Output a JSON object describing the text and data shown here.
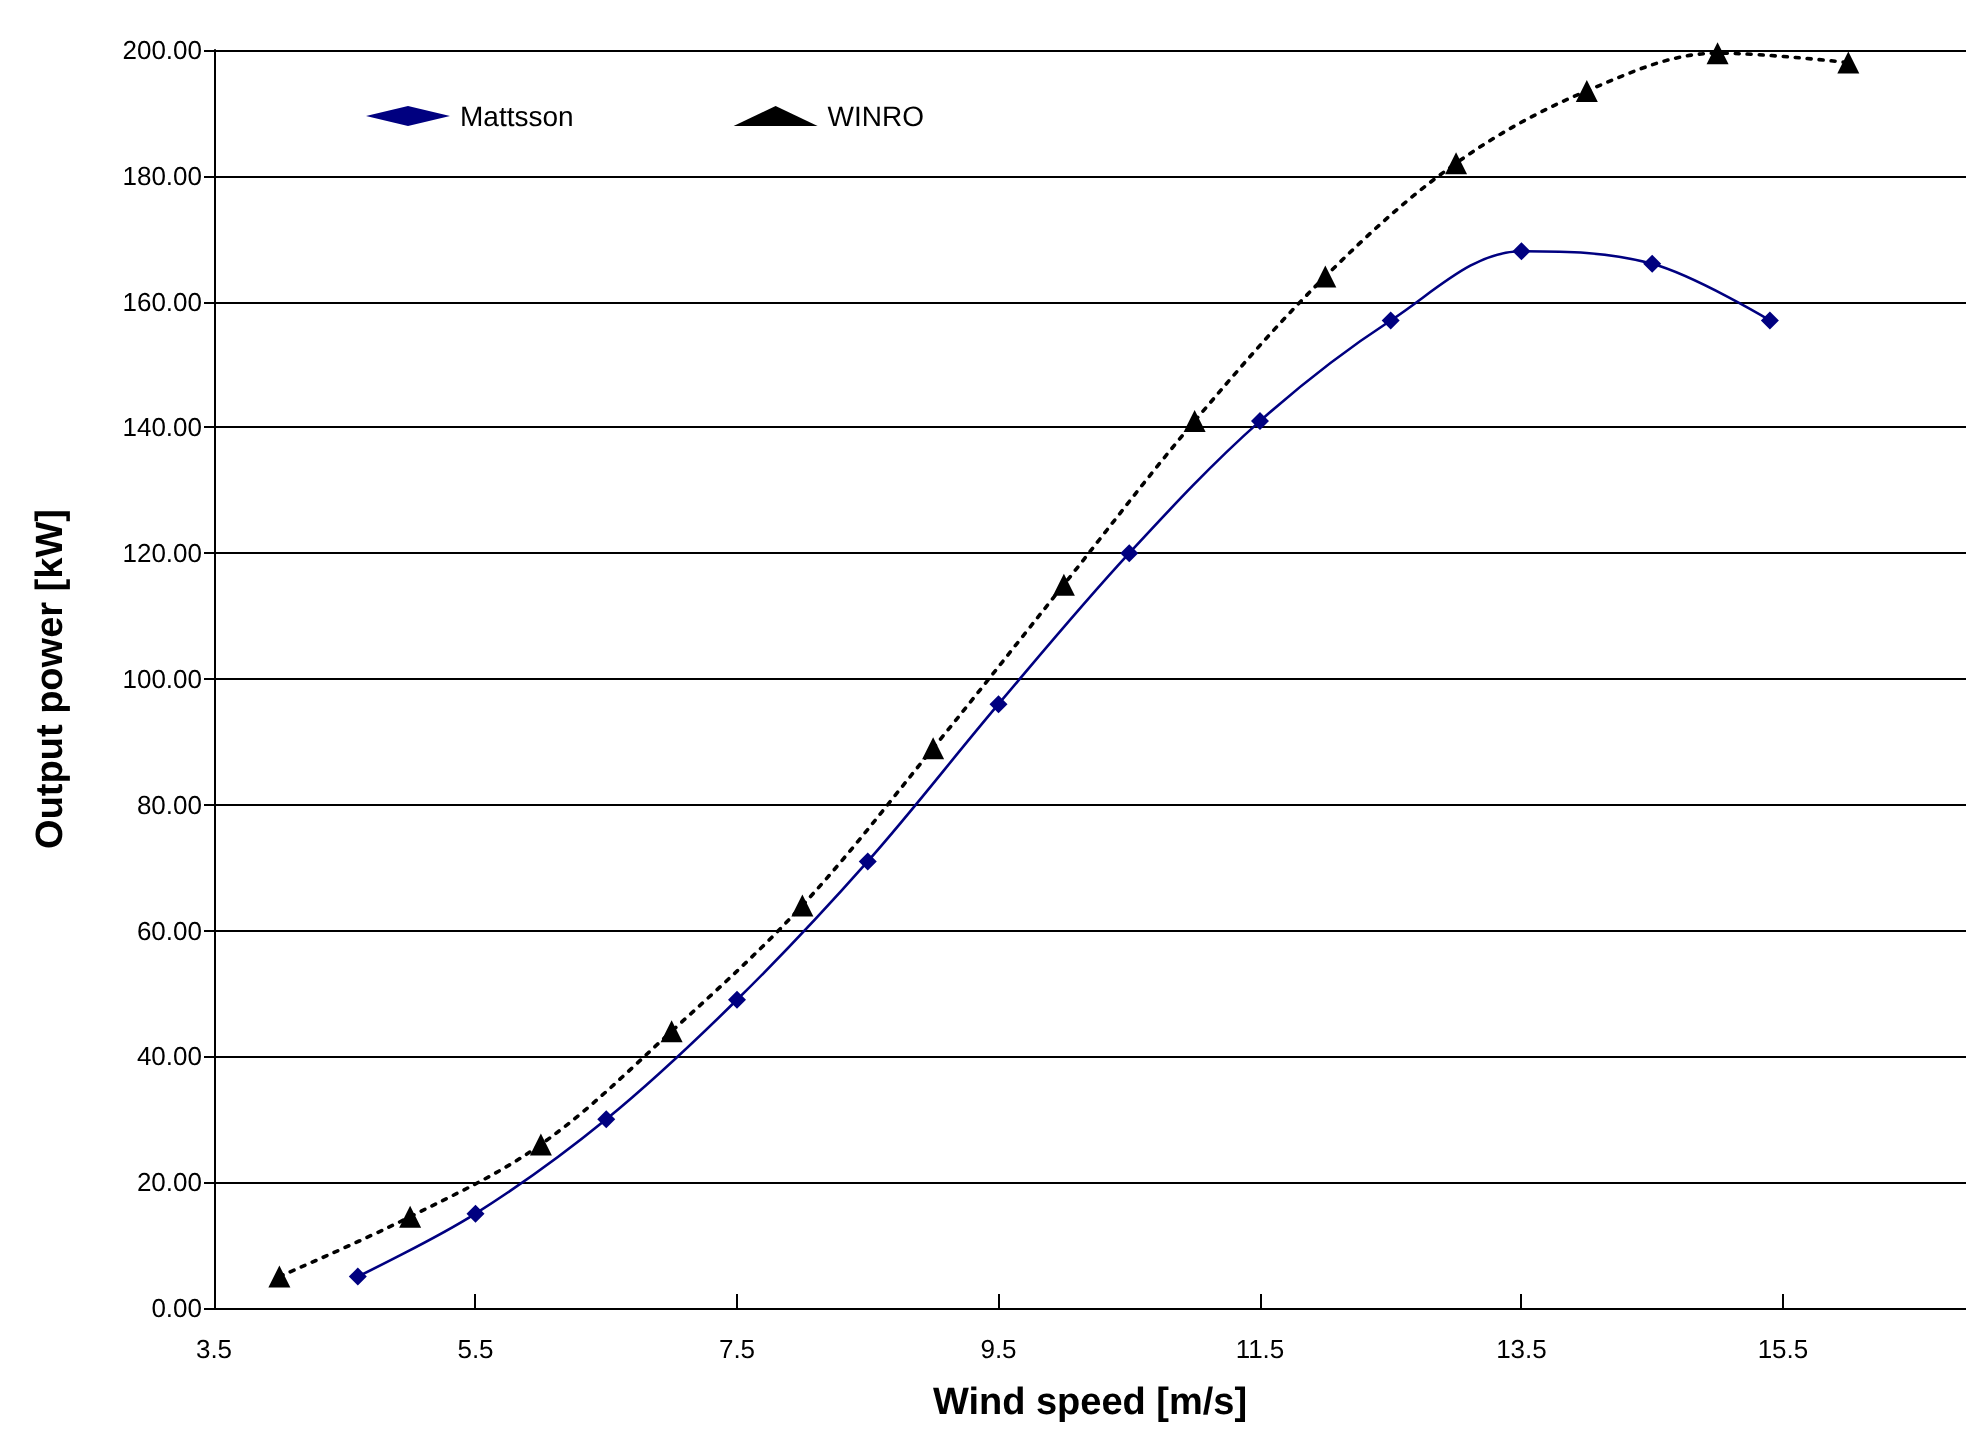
{
  "chart_data": {
    "type": "line",
    "xlabel": "Wind speed [m/s]",
    "ylabel": "Output power [kW]",
    "xlim": [
      3.5,
      16.9
    ],
    "xticks": [
      3.5,
      5.5,
      7.5,
      9.5,
      11.5,
      13.5,
      15.5
    ],
    "ylim": [
      0,
      200
    ],
    "yticks": [
      {
        "value": 0,
        "label": "0.00"
      },
      {
        "value": 20,
        "label": "20.00"
      },
      {
        "value": 40,
        "label": "40.00"
      },
      {
        "value": 60,
        "label": "60.00"
      },
      {
        "value": 80,
        "label": "80.00"
      },
      {
        "value": 100,
        "label": "100.00"
      },
      {
        "value": 120,
        "label": "120.00"
      },
      {
        "value": 140,
        "label": "140.00"
      },
      {
        "value": 160,
        "label": "160.00"
      },
      {
        "value": 180,
        "label": "180.00"
      },
      {
        "value": 200,
        "label": "200.00"
      }
    ],
    "grid": "y",
    "legend": "top left",
    "series": [
      {
        "name": "Mattsson",
        "color": "#000080",
        "marker": "diamond",
        "line_style": "solid",
        "x": [
          4.6,
          5.5,
          6.5,
          7.5,
          8.5,
          9.5,
          10.5,
          11.5,
          12.5,
          13.5,
          14.5,
          15.4
        ],
        "values": [
          5,
          15,
          30,
          49,
          71,
          96,
          120,
          141,
          157,
          168,
          166,
          157
        ]
      },
      {
        "name": "WINRO",
        "color": "#000000",
        "marker": "triangle",
        "line_style": "dotted",
        "x": [
          4,
          5,
          6,
          7,
          8,
          9,
          10,
          11,
          12,
          13,
          14,
          15,
          16
        ],
        "values": [
          5,
          14.5,
          26,
          44,
          64,
          89,
          115,
          141,
          164,
          182,
          193.5,
          199.5,
          198
        ]
      }
    ]
  }
}
